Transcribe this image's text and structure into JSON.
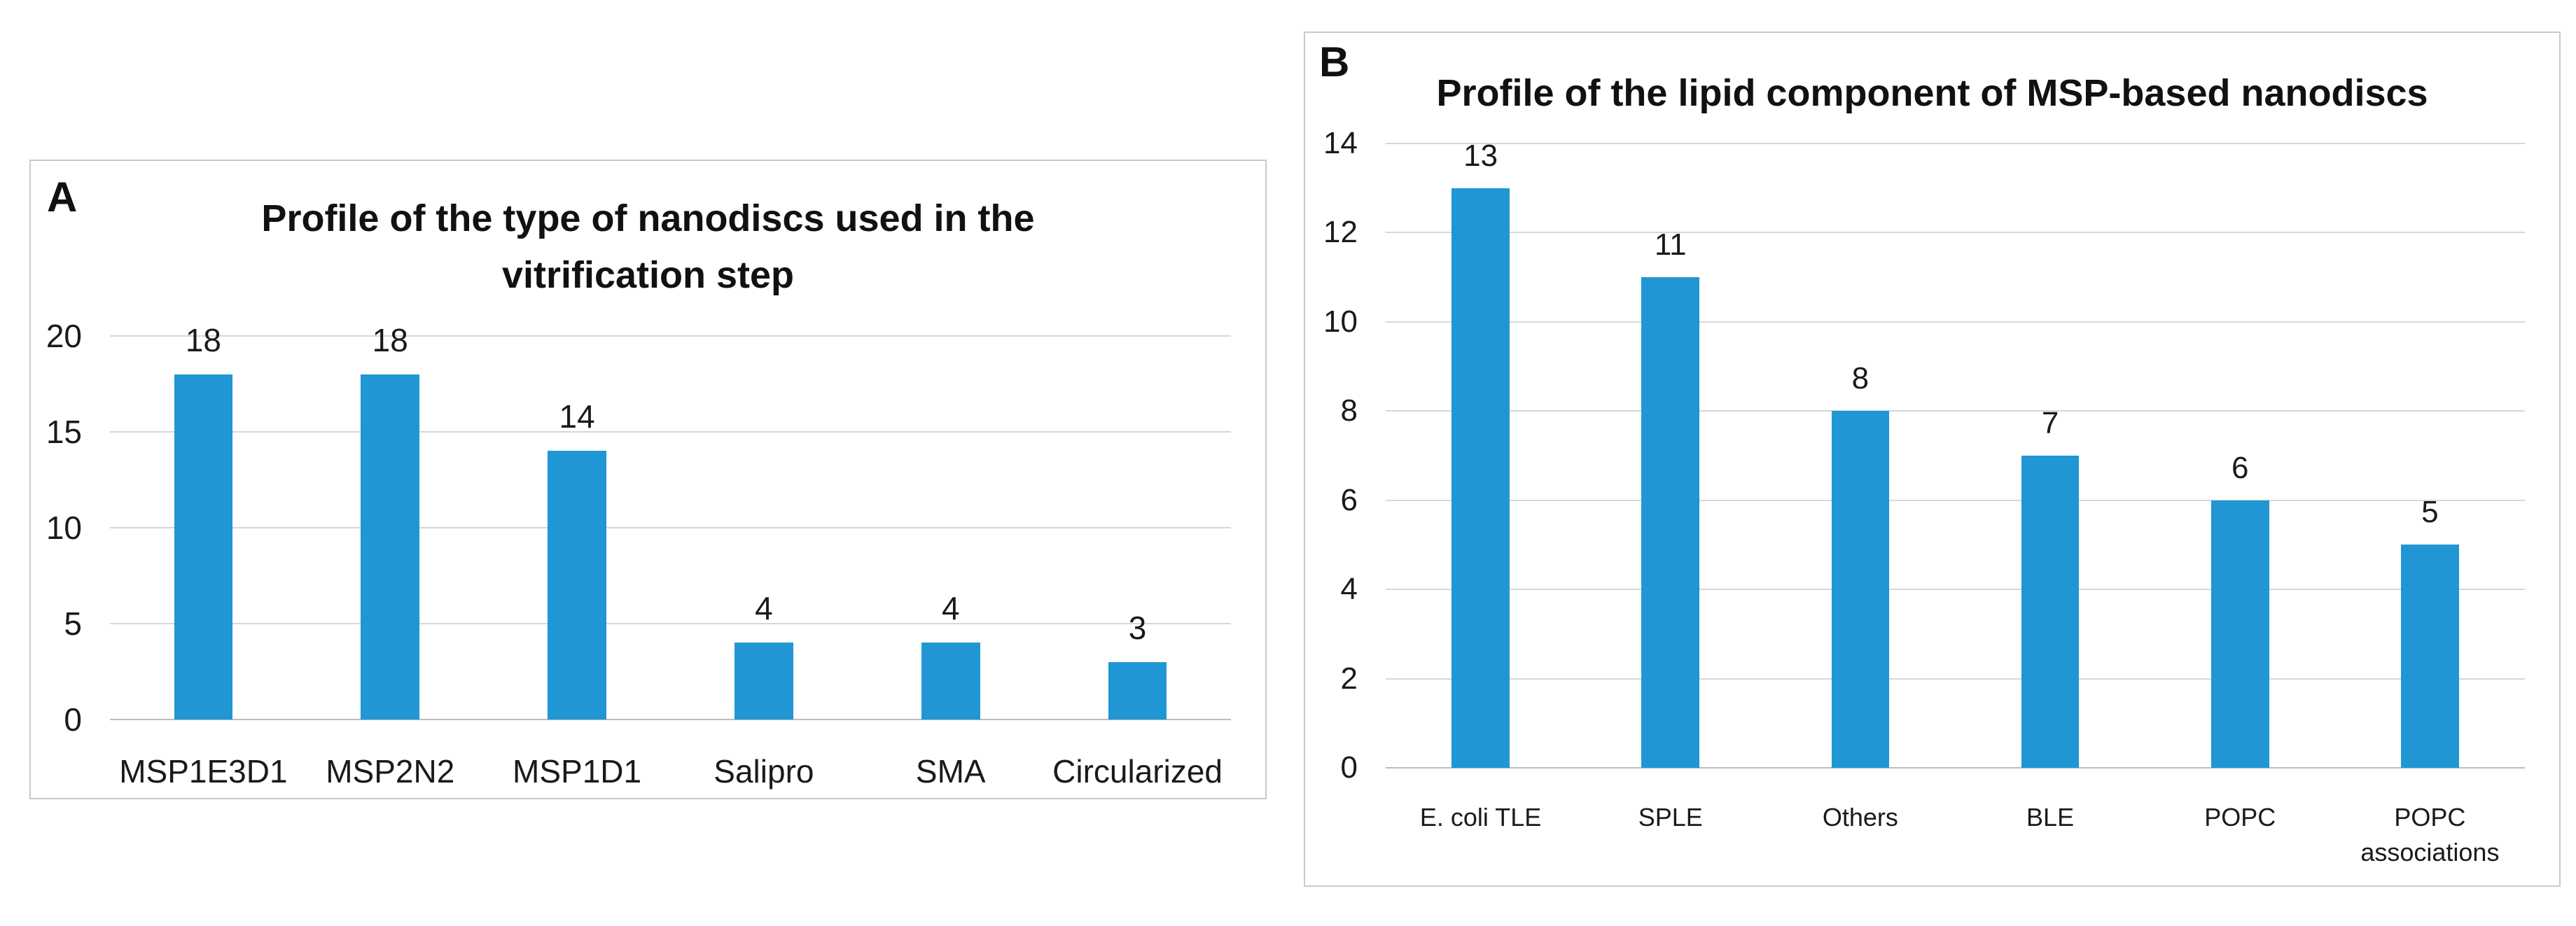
{
  "panels": [
    {
      "letter": "A"
    },
    {
      "letter": "B"
    }
  ],
  "colors": {
    "bar": "#2096d4",
    "gridline": "#d7d7d7",
    "axis_baseline": "#bcbcbc",
    "panel_border": "#c9c9c9",
    "text": "#1a1a1a",
    "background": "#ffffff"
  },
  "chart_data": [
    {
      "type": "bar",
      "title": "Profile of the type of nanodiscs used in the vitrification step",
      "categories": [
        "MSP1E3D1",
        "MSP2N2",
        "MSP1D1",
        "Salipro",
        "SMA",
        "Circularized"
      ],
      "values": [
        18,
        18,
        14,
        4,
        4,
        3
      ],
      "data_labels": [
        "18",
        "18",
        "14",
        "4",
        "4",
        "3"
      ],
      "yticks": [
        0,
        5,
        10,
        15,
        20
      ],
      "ylim": [
        0,
        20
      ],
      "xlabel": "",
      "ylabel": "",
      "grid": true,
      "legend": "none"
    },
    {
      "type": "bar",
      "title": "Profile of the lipid component of MSP-based nanodiscs",
      "categories": [
        "E. coli TLE",
        "SPLE",
        "Others",
        "BLE",
        "POPC",
        "POPC associations"
      ],
      "values": [
        13,
        11,
        8,
        7,
        6,
        5
      ],
      "data_labels": [
        "13",
        "11",
        "8",
        "7",
        "6",
        "5"
      ],
      "yticks": [
        0,
        2,
        4,
        6,
        8,
        10,
        12,
        14
      ],
      "ylim": [
        0,
        14
      ],
      "xlabel": "",
      "ylabel": "",
      "grid": true,
      "legend": "none"
    }
  ]
}
